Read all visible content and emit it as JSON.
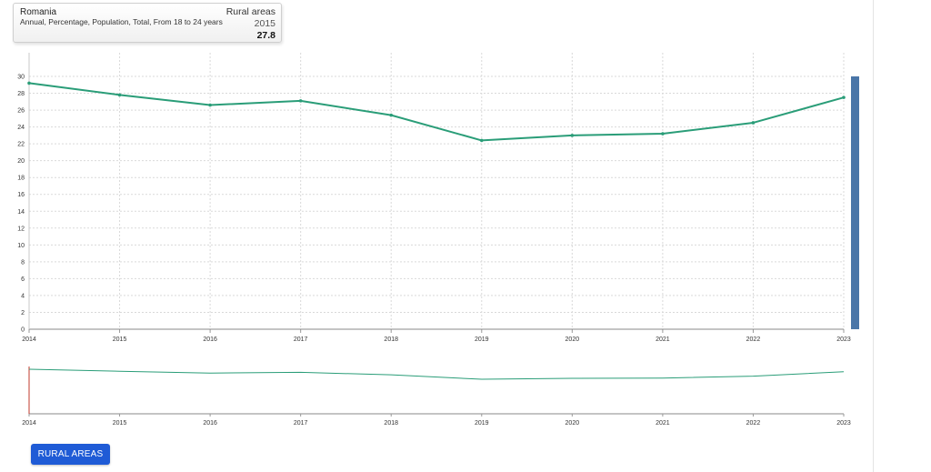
{
  "tooltip": {
    "country": "Romania",
    "description": "Annual, Percentage, Population, Total, From 18 to 24 years",
    "series": "Rural areas",
    "year": "2015",
    "value": "27.8"
  },
  "button": {
    "label": "RURAL AREAS"
  },
  "colors": {
    "line": "#2a9d78",
    "scrollbar": "#4a76a8",
    "button": "#1f5bd6"
  },
  "chart_data": {
    "type": "line",
    "title": "",
    "xlabel": "",
    "ylabel": "",
    "x": [
      2014,
      2015,
      2016,
      2017,
      2018,
      2019,
      2020,
      2021,
      2022,
      2023
    ],
    "series": [
      {
        "name": "Rural areas",
        "values": [
          29.2,
          27.8,
          26.6,
          27.1,
          25.4,
          22.4,
          23.0,
          23.2,
          24.5,
          27.5
        ]
      }
    ],
    "ylim": [
      0,
      30
    ],
    "yticks": [
      0,
      2,
      4,
      6,
      8,
      10,
      12,
      14,
      16,
      18,
      20,
      22,
      24,
      26,
      28,
      30
    ],
    "grid": true,
    "legend": "none"
  }
}
